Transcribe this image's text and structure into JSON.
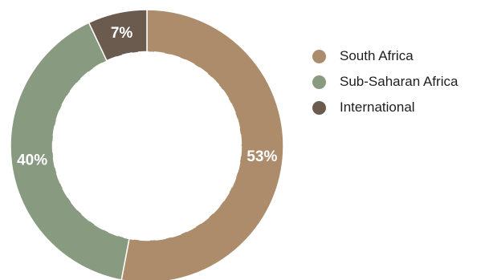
{
  "chart_data": {
    "type": "pie",
    "variant": "donut",
    "categories": [
      "South Africa",
      "Sub-Saharan Africa",
      "International"
    ],
    "values": [
      53,
      40,
      7
    ],
    "value_labels": [
      "53%",
      "40%",
      "7%"
    ],
    "colors": [
      "#ad8c6c",
      "#889a80",
      "#6b5b4f"
    ],
    "start_angle_deg": 0,
    "direction": "clockwise",
    "legend": "right",
    "title": ""
  }
}
